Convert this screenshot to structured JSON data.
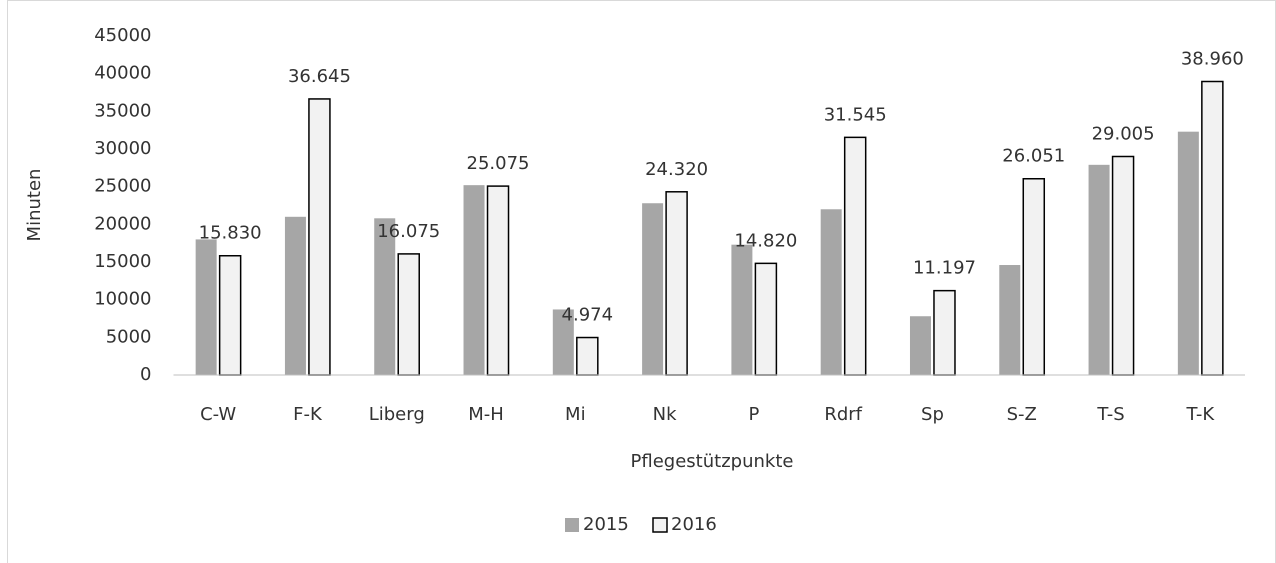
{
  "chart_data": {
    "type": "bar",
    "x_label": "Pflegestützpunkte",
    "y_label": "Minuten",
    "categories": [
      "C-W",
      "F-K",
      "Liberg",
      "M-H",
      "Mi",
      "Nk",
      "P",
      "Rdrf",
      "Sp",
      "S-Z",
      "T-S",
      "T-K"
    ],
    "series": [
      {
        "name": "2015",
        "color": "#a6a6a6",
        "values": [
          18000,
          21000,
          20800,
          25200,
          8700,
          22800,
          17300,
          22000,
          7800,
          14600,
          27900,
          32300
        ]
      },
      {
        "name": "2016",
        "color": "#f2f2f2",
        "edgecolor": "#000000",
        "values": [
          15830,
          36645,
          16075,
          25075,
          4974,
          24320,
          14820,
          31545,
          11197,
          26051,
          29005,
          38960
        ],
        "value_labels": [
          "15.830",
          "36.645",
          "16.075",
          "25.075",
          "4.974",
          "24.320",
          "14.820",
          "31.545",
          "11.197",
          "26.051",
          "29.005",
          "38.960"
        ]
      }
    ],
    "ylim": [
      0,
      45000
    ],
    "yticks": [
      0,
      5000,
      10000,
      15000,
      20000,
      25000,
      30000,
      35000,
      40000,
      45000
    ],
    "grid": false,
    "legend": "bottom"
  }
}
